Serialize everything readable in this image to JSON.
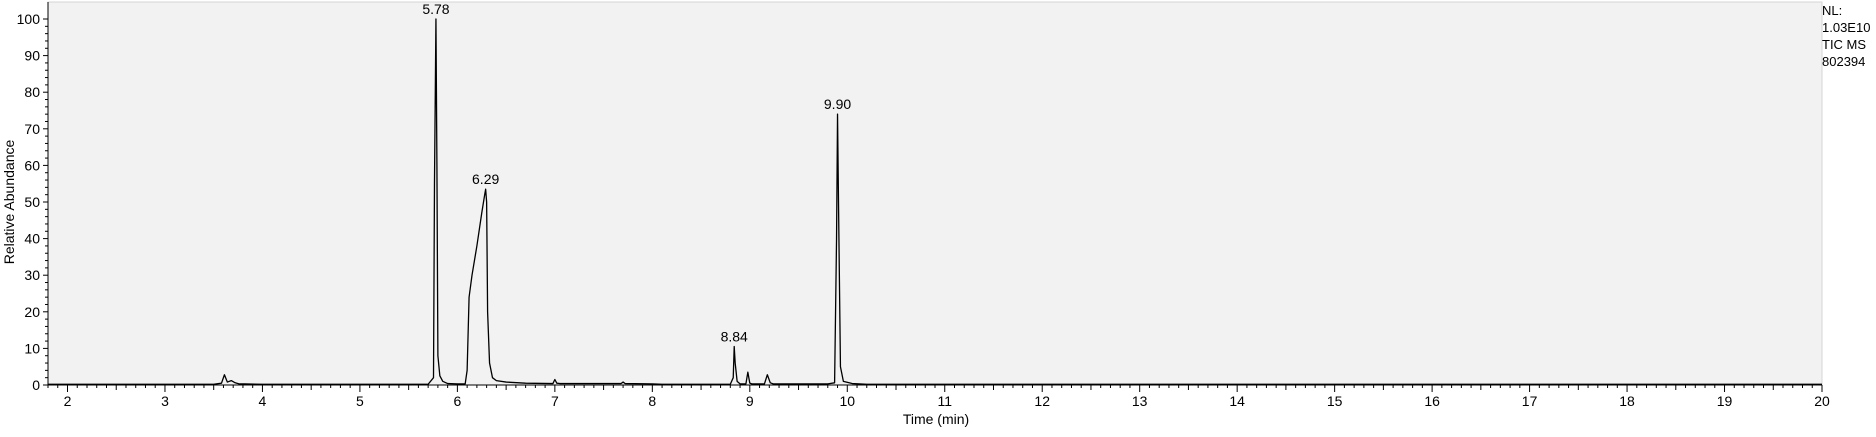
{
  "chart_data": {
    "type": "line",
    "title": "",
    "xlabel": "Time (min)",
    "ylabel": "Relative Abundance",
    "xlim": [
      1.8,
      20
    ],
    "ylim": [
      0,
      100
    ],
    "x_ticks": [
      2,
      3,
      4,
      5,
      6,
      7,
      8,
      9,
      10,
      11,
      12,
      13,
      14,
      15,
      16,
      17,
      18,
      19,
      20
    ],
    "y_ticks": [
      0,
      10,
      20,
      30,
      40,
      50,
      60,
      70,
      80,
      90,
      100
    ],
    "x_tick_labels": [
      "2",
      "3",
      "4",
      "5",
      "6",
      "7",
      "8",
      "9",
      "10",
      "11",
      "12",
      "13",
      "14",
      "15",
      "16",
      "17",
      "18",
      "19",
      "20"
    ],
    "y_tick_labels": [
      "0",
      "10",
      "20",
      "30",
      "40",
      "50",
      "60",
      "70",
      "80",
      "90",
      "100"
    ],
    "series": [
      {
        "name": "TIC MS 802394",
        "x": [
          1.8,
          3.5,
          3.58,
          3.61,
          3.64,
          3.68,
          3.72,
          3.76,
          3.82,
          4.0,
          5.0,
          5.7,
          5.755,
          5.765,
          5.78,
          5.79,
          5.8,
          5.82,
          5.85,
          5.9,
          6.0,
          6.08,
          6.1,
          6.12,
          6.15,
          6.2,
          6.25,
          6.28,
          6.29,
          6.3,
          6.31,
          6.33,
          6.36,
          6.4,
          6.5,
          6.7,
          6.98,
          7.0,
          7.02,
          7.05,
          7.3,
          7.6,
          7.68,
          7.7,
          7.72,
          8.0,
          8.1,
          8.8,
          8.83,
          8.84,
          8.85,
          8.87,
          8.9,
          8.96,
          8.98,
          9.0,
          9.02,
          9.15,
          9.18,
          9.21,
          9.24,
          9.8,
          9.87,
          9.89,
          9.9,
          9.91,
          9.93,
          9.96,
          10.05,
          10.2,
          11.0,
          15.0,
          20.0
        ],
        "y": [
          0.2,
          0.2,
          0.5,
          2.8,
          0.8,
          1.2,
          0.6,
          0.3,
          0.3,
          0.2,
          0.2,
          0.2,
          2.0,
          55.0,
          100.0,
          60.0,
          8.0,
          2.5,
          1.0,
          0.4,
          0.3,
          0.3,
          4.0,
          24.0,
          30.0,
          38.0,
          47.0,
          52.0,
          53.5,
          50.0,
          20.0,
          6.0,
          2.0,
          1.2,
          0.8,
          0.5,
          0.4,
          1.5,
          0.5,
          0.4,
          0.4,
          0.4,
          0.4,
          0.8,
          0.4,
          0.3,
          0.2,
          0.2,
          2.0,
          10.5,
          6.0,
          1.0,
          0.3,
          0.3,
          3.5,
          0.5,
          0.3,
          0.3,
          2.8,
          0.6,
          0.3,
          0.3,
          0.6,
          40.0,
          74.0,
          50.0,
          5.0,
          1.0,
          0.4,
          0.2,
          0.2,
          0.2,
          0.2
        ]
      }
    ],
    "peak_labels": [
      {
        "x": 5.78,
        "y": 100,
        "text": "5.78"
      },
      {
        "x": 6.29,
        "y": 53.5,
        "text": "6.29"
      },
      {
        "x": 8.84,
        "y": 10.5,
        "text": "8.84"
      },
      {
        "x": 9.9,
        "y": 74,
        "text": "9.90"
      }
    ],
    "annotations": [
      "NL:",
      "1.03E10",
      "TIC  MS",
      "802394"
    ],
    "colors": {
      "plot_background": "#f2f2f2",
      "trace": "#000000",
      "axis": "#000000",
      "page_background": "#ffffff"
    },
    "grid": false,
    "legend": "none"
  }
}
